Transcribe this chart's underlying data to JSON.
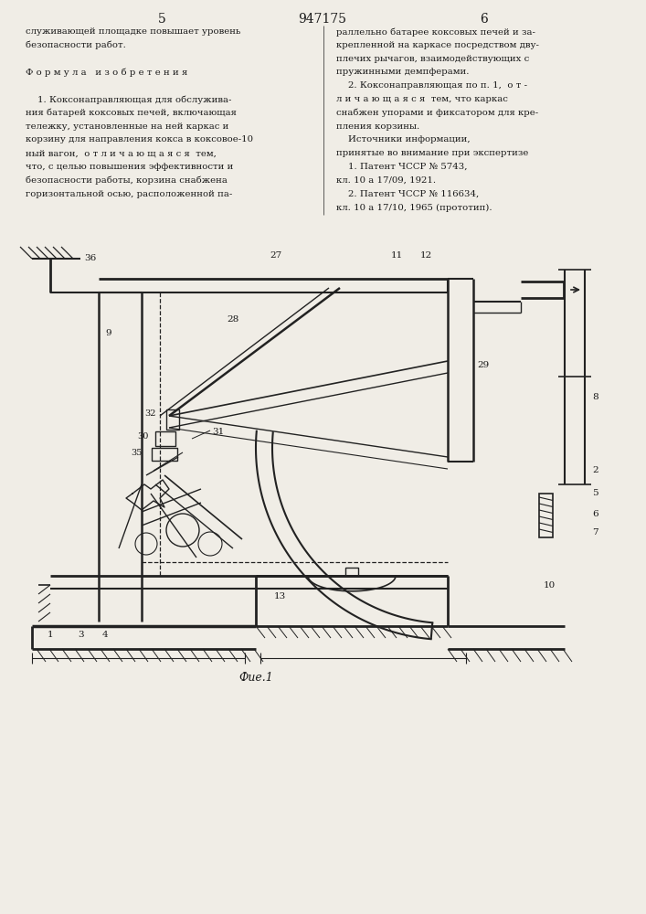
{
  "page_number_left": "5",
  "page_number_center": "947175",
  "page_number_right": "6",
  "col1_lines": [
    "служивающей площадке повышает уровень",
    "безопасности работ.",
    "",
    "Ф о р м у л а   и з о б р е т е н и я",
    "",
    "    1. Коксонаправляющая для обслужива-",
    "ния батарей коксовых печей, включающая",
    "тележку, установленные на ней каркас и",
    "корзину для направления кокса в коксовое-10",
    "ный вагон,  о т л и ч а ю щ а я с я  тем,",
    "что, с целью повышения эффективности и",
    "безопасности работы, корзина снабжена",
    "горизонтальной осью, расположенной па-"
  ],
  "col2_lines": [
    "раллельно батарее коксовых печей и за-",
    "крепленной на каркасе посредством дву-",
    "плечих рычагов, взаимодействующих с",
    "пружинными демпферами.",
    "    2. Коксонаправляющая по п. 1,  о т -",
    "л и ч а ю щ а я с я  тем, что каркас",
    "снабжен упорами и фиксатором для кре-",
    "пления корзины.",
    "    Источники информации,",
    "принятые во внимание при экспертизе",
    "    1. Патент ЧССР № 5743,",
    "кл. 10 а 17/09, 1921.",
    "    2. Патент ЧССР № 116634,",
    "кл. 10 а 17/10, 1965 (прототип)."
  ],
  "fig_caption": "Фие.1",
  "bg_color": "#f0ede6",
  "text_color": "#1a1a1a",
  "line_color": "#222222"
}
